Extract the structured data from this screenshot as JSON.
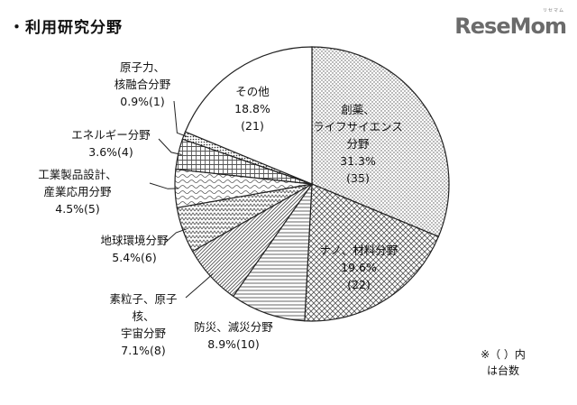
{
  "title": "・利用研究分野",
  "logo": {
    "text": "ReseMom",
    "small": "リセマム"
  },
  "note": {
    "line1": "※（ ）内",
    "line2": "は台数"
  },
  "colors": {
    "stroke": "#222222",
    "pattern": "#444444",
    "background": "#ffffff"
  },
  "chart_data": {
    "type": "pie",
    "start_angle_deg": 0,
    "direction": "clockwise",
    "slices": [
      {
        "name": [
          "創薬、",
          "ライフサイエンス",
          "分野"
        ],
        "percent_label": "31.3%",
        "count_label": "(35)",
        "percent": 31.3,
        "count": 35,
        "pattern": "dots"
      },
      {
        "name": [
          "ナノ、材料分野"
        ],
        "percent_label": "19.6%",
        "count_label": "(22)",
        "percent": 19.6,
        "count": 22,
        "pattern": "crosshatch"
      },
      {
        "name": [
          "防災、減災分野"
        ],
        "percent_label": "8.9%(10)",
        "count_label": "",
        "percent": 8.9,
        "count": 10,
        "pattern": "hlines"
      },
      {
        "name": [
          "素粒子、原子",
          "核、",
          "宇宙分野"
        ],
        "percent_label": "7.1%(8)",
        "count_label": "",
        "percent": 7.1,
        "count": 8,
        "pattern": "dense-diag"
      },
      {
        "name": [
          "地球環境分野"
        ],
        "percent_label": "5.4%(6)",
        "count_label": "",
        "percent": 5.4,
        "count": 6,
        "pattern": "zigzag"
      },
      {
        "name": [
          "工業製品設計、",
          "産業応用分野"
        ],
        "percent_label": "4.5%(5)",
        "count_label": "",
        "percent": 4.5,
        "count": 5,
        "pattern": "wave"
      },
      {
        "name": [
          "エネルギー分野"
        ],
        "percent_label": "3.6%(4)",
        "count_label": "",
        "percent": 3.6,
        "count": 4,
        "pattern": "grid"
      },
      {
        "name": [
          "原子力、",
          "核融合分野"
        ],
        "percent_label": "0.9%(1)",
        "count_label": "",
        "percent": 0.9,
        "count": 1,
        "pattern": "fine-dots"
      },
      {
        "name": [
          "その他"
        ],
        "percent_label": "18.8%",
        "count_label": "(21)",
        "percent": 18.8,
        "count": 21,
        "pattern": "none"
      }
    ]
  }
}
